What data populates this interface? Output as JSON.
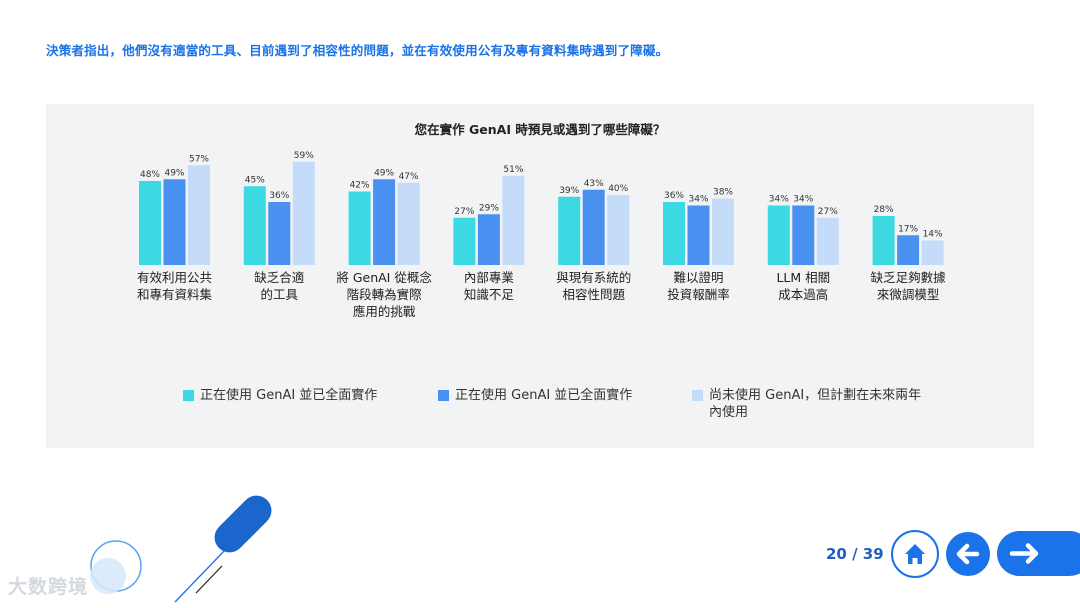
{
  "headline": "決策者指出，他們沒有適當的工具、目前遇到了相容性的問題，並在有效使用公有及專有資料集時遇到了障礙。",
  "colors": {
    "series1": "#3dd9e3",
    "series2": "#4a90f0",
    "series3": "#c4dcfa",
    "accent": "#1a73e8"
  },
  "chart_data": {
    "type": "bar",
    "title": "您在實作 GenAI 時預見或遇到了哪些障礙？",
    "categories": [
      [
        "有效利用公共",
        "和專有資料集"
      ],
      [
        "缺乏合適",
        "的工具"
      ],
      [
        "將 GenAI 從概念",
        "階段轉為實際",
        "應用的挑戰"
      ],
      [
        "內部專業",
        "知識不足"
      ],
      [
        "與現有系統的",
        "相容性問題"
      ],
      [
        "難以證明",
        "投資報酬率"
      ],
      [
        "LLM 相關",
        "成本過高"
      ],
      [
        "缺乏足夠數據",
        "來微調模型"
      ]
    ],
    "series": [
      {
        "name": "正在使用 GenAI 並已全面實作",
        "values": [
          48,
          45,
          42,
          27,
          39,
          36,
          34,
          28
        ]
      },
      {
        "name": "正在使用 GenAI 並已全面實作",
        "values": [
          49,
          36,
          49,
          29,
          43,
          34,
          34,
          17
        ]
      },
      {
        "name": "尚未使用 GenAI，但計劃在未來兩年內使用",
        "values": [
          57,
          59,
          47,
          51,
          40,
          38,
          27,
          14
        ]
      }
    ],
    "value_suffix": "%",
    "ylim": [
      0,
      60
    ],
    "grid": false,
    "legend_position": "bottom"
  },
  "legend": [
    {
      "label": "正在使用 GenAI 並已全面實作"
    },
    {
      "label": "正在使用 GenAI 並已全面實作"
    },
    {
      "label": "尚未使用 GenAI，但計劃在未來兩年內使用"
    }
  ],
  "footer": {
    "page": "20 / 39"
  },
  "icons": {
    "home": "home-icon",
    "back": "arrow-left-icon",
    "next": "arrow-right-icon"
  },
  "watermark": "大数跨境"
}
